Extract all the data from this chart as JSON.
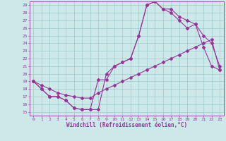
{
  "xlabel": "Windchill (Refroidissement éolien,°C)",
  "bg_color": "#cce8e8",
  "grid_color": "#99cccc",
  "line_color": "#993399",
  "xlim": [
    -0.5,
    23.5
  ],
  "ylim": [
    14.5,
    29.5
  ],
  "yticks": [
    15,
    16,
    17,
    18,
    19,
    20,
    21,
    22,
    23,
    24,
    25,
    26,
    27,
    28,
    29
  ],
  "xticks": [
    0,
    1,
    2,
    3,
    4,
    5,
    6,
    7,
    8,
    9,
    10,
    11,
    12,
    13,
    14,
    15,
    16,
    17,
    18,
    19,
    20,
    21,
    22,
    23
  ],
  "line1_x": [
    0,
    1,
    2,
    3,
    4,
    5,
    6,
    7,
    8,
    9,
    10,
    11,
    12,
    13,
    14,
    15,
    16,
    17,
    18,
    19,
    20,
    21,
    22,
    23
  ],
  "line1_y": [
    19,
    18,
    17,
    17,
    16.5,
    15.5,
    15.3,
    15.3,
    19.2,
    19.2,
    21,
    21.5,
    22,
    25,
    29,
    29.5,
    28.5,
    28,
    27,
    26,
    26.5,
    23.5,
    21,
    20.5
  ],
  "line2_x": [
    0,
    1,
    2,
    3,
    4,
    5,
    6,
    7,
    8,
    9,
    10,
    11,
    12,
    13,
    14,
    15,
    16,
    17,
    18,
    19,
    20,
    21,
    22,
    23
  ],
  "line2_y": [
    19,
    18,
    17,
    17,
    16.5,
    15.5,
    15.3,
    15.3,
    15.3,
    20,
    21,
    21.5,
    22,
    25,
    29,
    29.5,
    28.5,
    28.5,
    27.5,
    27,
    26.5,
    25,
    24,
    21
  ],
  "line3_x": [
    0,
    1,
    2,
    3,
    4,
    5,
    6,
    7,
    8,
    9,
    10,
    11,
    12,
    13,
    14,
    15,
    16,
    17,
    18,
    19,
    20,
    21,
    22,
    23
  ],
  "line3_y": [
    19,
    18.5,
    18,
    17.5,
    17.2,
    17,
    16.8,
    16.8,
    17.5,
    18,
    18.5,
    19,
    19.5,
    20,
    20.5,
    21,
    21.5,
    22,
    22.5,
    23,
    23.5,
    24,
    24.5,
    20.5
  ],
  "marker": "D",
  "markersize": 2.0,
  "linewidth": 0.8,
  "tick_fontsize": 4.5,
  "xlabel_fontsize": 5.5
}
